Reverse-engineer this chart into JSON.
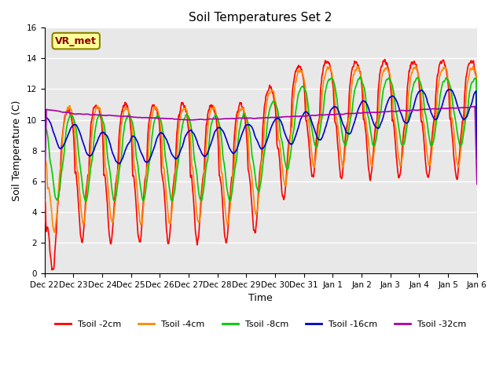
{
  "title": "Soil Temperatures Set 2",
  "xlabel": "Time",
  "ylabel": "Soil Temperature (C)",
  "ylim": [
    0,
    16
  ],
  "yticks": [
    0,
    2,
    4,
    6,
    8,
    10,
    12,
    14,
    16
  ],
  "annotation_text": "VR_met",
  "bg_color": "#e8e8e8",
  "fig_color": "#ffffff",
  "legend_entries": [
    "Tsoil -2cm",
    "Tsoil -4cm",
    "Tsoil -8cm",
    "Tsoil -16cm",
    "Tsoil -32cm"
  ],
  "line_colors": [
    "#ff0000",
    "#ff8800",
    "#00cc00",
    "#0000cc",
    "#aa00aa"
  ],
  "x_tick_labels": [
    "Dec 22",
    "Dec 23",
    "Dec 24",
    "Dec 25",
    "Dec 26",
    "Dec 27",
    "Dec 28",
    "Dec 29",
    "Dec 30",
    "Dec 31",
    "Jan 1",
    "Jan 2",
    "Jan 3",
    "Jan 4",
    "Jan 5",
    "Jan 6"
  ],
  "num_days": 15
}
